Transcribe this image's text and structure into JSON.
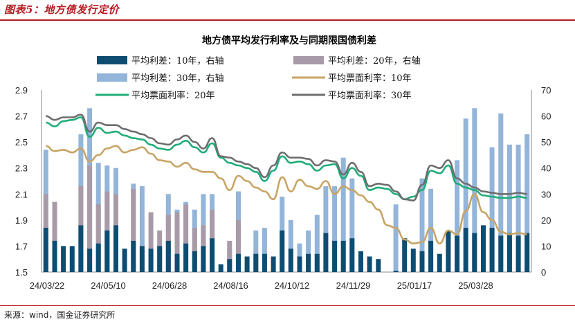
{
  "figure_title": "图表5：地方债发行定价",
  "source": "来源：wind，国金证券研究所",
  "colors": {
    "bar10": "#0e4d72",
    "bar20": "#a99aa8",
    "bar30": "#93b5d9",
    "line10": "#c8a464",
    "line20": "#1fad78",
    "line30": "#6e6e6e",
    "accent": "#b51d23"
  },
  "chart_data": {
    "type": "bar",
    "title": "地方债平均发行利率及与同期限国债利差",
    "left_axis": {
      "range": [
        1.5,
        2.9
      ],
      "ticks": [
        "2.9",
        "2.7",
        "2.5",
        "2.3",
        "2.1",
        "1.9",
        "1.7",
        "1.5"
      ]
    },
    "right_axis": {
      "range": [
        0,
        70
      ],
      "ticks": [
        "70",
        "60",
        "50",
        "40",
        "30",
        "20",
        "10",
        "0"
      ]
    },
    "x_tick_labels": [
      "24/03/22",
      "24/05/10",
      "24/06/28",
      "24/08/16",
      "24/10/12",
      "24/11/29",
      "25/01/17",
      "25/03/28"
    ],
    "x_tick_index": [
      0,
      7,
      14,
      21,
      28,
      35,
      42,
      49
    ],
    "n_periods": 56,
    "legend_position": "top",
    "series": [
      {
        "name": "平均利差：10年，右轴",
        "kind": "bar",
        "axis": "right",
        "color": "#0e4d72",
        "values": [
          17,
          12,
          10,
          10,
          18,
          9,
          11,
          16,
          18,
          9,
          12,
          10,
          9,
          10,
          12,
          7,
          11,
          8,
          10,
          13,
          3,
          5,
          7,
          6,
          7,
          7,
          6,
          16,
          9,
          6,
          7,
          7,
          15,
          12,
          12,
          13,
          8,
          6,
          5,
          null,
          0.5,
          13,
          9,
          8,
          12,
          7,
          16,
          14,
          17,
          15,
          18,
          17,
          14,
          15,
          14,
          15
        ]
      },
      {
        "name": "平均利差：20年，右轴",
        "kind": "bar",
        "axis": "right",
        "color": "#a99aa8",
        "values": [
          30,
          27,
          null,
          null,
          33,
          41,
          26,
          31,
          30,
          null,
          32,
          null,
          23,
          16,
          22,
          23,
          26,
          17,
          18,
          24,
          null,
          12,
          20,
          null,
          null,
          null,
          null,
          null,
          null,
          null,
          null,
          null,
          null,
          null,
          null,
          null,
          null,
          null,
          null,
          null,
          null,
          null,
          null,
          null,
          null,
          null,
          null,
          null,
          null,
          null,
          null,
          null,
          null,
          null,
          null,
          null
        ]
      },
      {
        "name": "平均利差：30年，右轴",
        "kind": "bar",
        "axis": "right",
        "color": "#93b5d9",
        "values": [
          47,
          null,
          null,
          null,
          53,
          63,
          42,
          41,
          40,
          null,
          34,
          33,
          null,
          null,
          30,
          24,
          27,
          24,
          30,
          30,
          null,
          9,
          31,
          null,
          16,
          17,
          null,
          29,
          20,
          11,
          16,
          22,
          33,
          33,
          44,
          36,
          null,
          null,
          null,
          null,
          26,
          null,
          null,
          36,
          32,
          null,
          null,
          43,
          59,
          63,
          null,
          48,
          61,
          49,
          49,
          53
        ]
      },
      {
        "name": "平均票面利率：10年",
        "kind": "line",
        "axis": "left",
        "color": "#c8a464",
        "values": [
          2.47,
          2.43,
          2.44,
          2.42,
          2.45,
          2.35,
          2.4,
          2.45,
          2.47,
          2.42,
          2.44,
          2.46,
          2.41,
          2.36,
          2.35,
          2.31,
          2.34,
          2.29,
          2.27,
          2.27,
          2.22,
          2.13,
          2.24,
          2.2,
          2.15,
          2.12,
          2.06,
          2.23,
          2.12,
          2.21,
          2.16,
          2.14,
          2.2,
          2.1,
          2.16,
          2.13,
          2.09,
          2.04,
          1.98,
          1.86,
          1.84,
          1.75,
          1.72,
          1.73,
          1.84,
          1.72,
          1.82,
          1.79,
          1.97,
          2.1,
          1.96,
          1.9,
          1.81,
          1.79,
          1.8,
          1.79
        ]
      },
      {
        "name": "平均票面利率：20年",
        "kind": "line",
        "axis": "left",
        "color": "#1fad78",
        "values": [
          2.65,
          2.62,
          2.66,
          2.67,
          2.69,
          2.54,
          2.61,
          2.57,
          2.58,
          2.55,
          2.53,
          2.52,
          2.48,
          2.45,
          2.44,
          2.48,
          2.51,
          2.46,
          2.42,
          2.49,
          2.38,
          2.34,
          2.32,
          2.3,
          2.27,
          2.2,
          2.28,
          2.39,
          2.34,
          2.35,
          2.33,
          2.28,
          2.32,
          2.33,
          2.22,
          2.3,
          2.24,
          2.13,
          2.15,
          2.14,
          2.1,
          2.06,
          2.08,
          2.13,
          2.28,
          2.26,
          2.32,
          2.18,
          2.15,
          2.13,
          2.09,
          2.08,
          2.07,
          2.07,
          2.08,
          2.07
        ]
      },
      {
        "name": "平均票面利率：30年",
        "kind": "line",
        "axis": "left",
        "color": "#6e6e6e",
        "values": [
          2.7,
          2.67,
          2.69,
          2.69,
          2.71,
          2.58,
          2.65,
          2.63,
          2.63,
          2.6,
          2.58,
          2.56,
          2.53,
          2.49,
          2.48,
          2.52,
          2.55,
          2.5,
          2.45,
          2.53,
          2.39,
          2.38,
          2.35,
          2.33,
          2.3,
          2.23,
          2.32,
          2.42,
          2.38,
          2.38,
          2.37,
          2.32,
          2.36,
          2.35,
          2.25,
          2.34,
          2.27,
          2.16,
          2.18,
          2.17,
          2.12,
          2.06,
          2.05,
          2.17,
          2.32,
          2.3,
          2.36,
          2.22,
          2.18,
          2.15,
          2.12,
          2.11,
          2.1,
          2.1,
          2.11,
          2.1
        ]
      }
    ]
  }
}
